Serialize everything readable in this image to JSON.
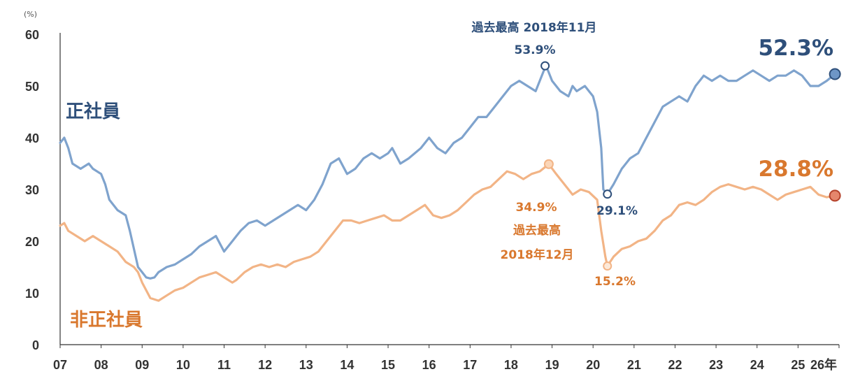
{
  "chart_data": {
    "type": "line",
    "y_unit": "(%)",
    "x_suffix": "年",
    "ylim": [
      0,
      60
    ],
    "y_ticks": [
      "0",
      "10",
      "20",
      "30",
      "40",
      "50",
      "60"
    ],
    "x_ticks": [
      "07",
      "08",
      "09",
      "10",
      "11",
      "12",
      "13",
      "14",
      "15",
      "16",
      "17",
      "18",
      "19",
      "20",
      "21",
      "22",
      "23",
      "24",
      "25",
      "26"
    ],
    "series": [
      {
        "name": "正社員",
        "color": "#7fa3cd",
        "label_color": "#2e4f7a",
        "x": [
          2007.0,
          2007.1,
          2007.2,
          2007.3,
          2007.5,
          2007.7,
          2007.8,
          2008.0,
          2008.1,
          2008.2,
          2008.4,
          2008.6,
          2008.7,
          2008.9,
          2009.0,
          2009.1,
          2009.2,
          2009.3,
          2009.4,
          2009.6,
          2009.8,
          2010.0,
          2010.2,
          2010.4,
          2010.6,
          2010.8,
          2011.0,
          2011.2,
          2011.3,
          2011.4,
          2011.6,
          2011.8,
          2012.0,
          2012.2,
          2012.4,
          2012.6,
          2012.8,
          2013.0,
          2013.2,
          2013.4,
          2013.6,
          2013.8,
          2014.0,
          2014.1,
          2014.2,
          2014.4,
          2014.6,
          2014.8,
          2015.0,
          2015.1,
          2015.3,
          2015.5,
          2015.8,
          2016.0,
          2016.1,
          2016.2,
          2016.4,
          2016.6,
          2016.8,
          2017.0,
          2017.2,
          2017.4,
          2017.6,
          2017.8,
          2018.0,
          2018.2,
          2018.4,
          2018.6,
          2018.8,
          2018.83,
          2018.9,
          2019.0,
          2019.2,
          2019.4,
          2019.5,
          2019.6,
          2019.8,
          2020.0,
          2020.1,
          2020.2,
          2020.25,
          2020.35,
          2020.5,
          2020.7,
          2020.9,
          2021.1,
          2021.3,
          2021.5,
          2021.7,
          2021.9,
          2022.1,
          2022.3,
          2022.5,
          2022.7,
          2022.9,
          2023.1,
          2023.3,
          2023.5,
          2023.7,
          2023.9,
          2024.1,
          2024.3,
          2024.5,
          2024.7,
          2024.9,
          2025.1,
          2025.3,
          2025.5,
          2025.7,
          2025.9
        ],
        "values": [
          39,
          40,
          38,
          35,
          34,
          35,
          34,
          33,
          31,
          28,
          26,
          25,
          22,
          15,
          14,
          13,
          12.8,
          13,
          14,
          15,
          15.5,
          16.5,
          17.5,
          19,
          20,
          21,
          18,
          20,
          21,
          22,
          23.5,
          24,
          23,
          24,
          25,
          26,
          27,
          26,
          28,
          31,
          35,
          36,
          33,
          33.5,
          34,
          36,
          37,
          36,
          37,
          38,
          35,
          36,
          38,
          40,
          39,
          38,
          37,
          39,
          40,
          42,
          44,
          44,
          46,
          48,
          50,
          51,
          50,
          49,
          53,
          53.9,
          53,
          51,
          49,
          48,
          50,
          49,
          50,
          48,
          45,
          38,
          30,
          29.1,
          31,
          34,
          36,
          37,
          40,
          43,
          46,
          47,
          48,
          47,
          50,
          52,
          51,
          52,
          51,
          51,
          52,
          53,
          52,
          51,
          52,
          52,
          53,
          52,
          50,
          50,
          51,
          52.3
        ]
      },
      {
        "name": "非正社員",
        "color": "#f2b486",
        "label_color": "#d9782e",
        "x": [
          2007.0,
          2007.1,
          2007.2,
          2007.4,
          2007.6,
          2007.8,
          2008.0,
          2008.2,
          2008.4,
          2008.6,
          2008.8,
          2008.9,
          2009.0,
          2009.2,
          2009.4,
          2009.6,
          2009.8,
          2010.0,
          2010.2,
          2010.4,
          2010.6,
          2010.8,
          2011.0,
          2011.2,
          2011.3,
          2011.5,
          2011.7,
          2011.9,
          2012.1,
          2012.3,
          2012.5,
          2012.7,
          2012.9,
          2013.1,
          2013.3,
          2013.5,
          2013.7,
          2013.9,
          2014.1,
          2014.3,
          2014.5,
          2014.7,
          2014.9,
          2015.1,
          2015.3,
          2015.5,
          2015.7,
          2015.9,
          2016.1,
          2016.3,
          2016.5,
          2016.7,
          2016.9,
          2017.1,
          2017.3,
          2017.5,
          2017.7,
          2017.9,
          2018.1,
          2018.3,
          2018.5,
          2018.7,
          2018.92,
          2019.1,
          2019.3,
          2019.5,
          2019.7,
          2019.9,
          2020.1,
          2020.2,
          2020.3,
          2020.35,
          2020.5,
          2020.7,
          2020.9,
          2021.1,
          2021.3,
          2021.5,
          2021.7,
          2021.9,
          2022.1,
          2022.3,
          2022.5,
          2022.7,
          2022.9,
          2023.1,
          2023.3,
          2023.5,
          2023.7,
          2023.9,
          2024.1,
          2024.3,
          2024.5,
          2024.7,
          2024.9,
          2025.1,
          2025.3,
          2025.5,
          2025.7,
          2025.9
        ],
        "values": [
          23,
          23.5,
          22,
          21,
          20,
          21,
          20,
          19,
          18,
          16,
          15,
          14,
          12,
          9,
          8.5,
          9.5,
          10.5,
          11,
          12,
          13,
          13.5,
          14,
          13,
          12,
          12.5,
          14,
          15,
          15.5,
          15,
          15.5,
          15,
          16,
          16.5,
          17,
          18,
          20,
          22,
          24,
          24,
          23.5,
          24,
          24.5,
          25,
          24,
          24,
          25,
          26,
          27,
          25,
          24.5,
          25,
          26,
          27.5,
          29,
          30,
          30.5,
          32,
          33.5,
          33,
          32,
          33,
          33.5,
          34.9,
          33,
          31,
          29,
          30,
          29.5,
          28,
          22,
          17,
          15.2,
          17,
          18.5,
          19,
          20,
          20.5,
          22,
          24,
          25,
          27,
          27.5,
          27,
          28,
          29.5,
          30.5,
          31,
          30.5,
          30,
          30.5,
          30,
          29,
          28,
          29,
          29.5,
          30,
          30.5,
          29,
          28.5,
          28.8
        ]
      }
    ],
    "annotations": {
      "peak_regular": {
        "title": "過去最高 2018年11月",
        "value": "53.9%",
        "x": 2018.83,
        "y": 53.9
      },
      "peak_nonregular": {
        "value": "34.9%",
        "line1": "過去最高",
        "line2": "2018年12月",
        "x": 2018.92,
        "y": 34.9
      },
      "low_regular": {
        "value": "29.1%",
        "x": 2020.35,
        "y": 29.1
      },
      "low_nonregular": {
        "value": "15.2%",
        "x": 2020.35,
        "y": 15.2
      },
      "latest_regular": {
        "value": "52.3%",
        "x": 2025.9,
        "y": 52.3
      },
      "latest_nonregular": {
        "value": "28.8%",
        "x": 2025.9,
        "y": 28.8
      }
    }
  }
}
